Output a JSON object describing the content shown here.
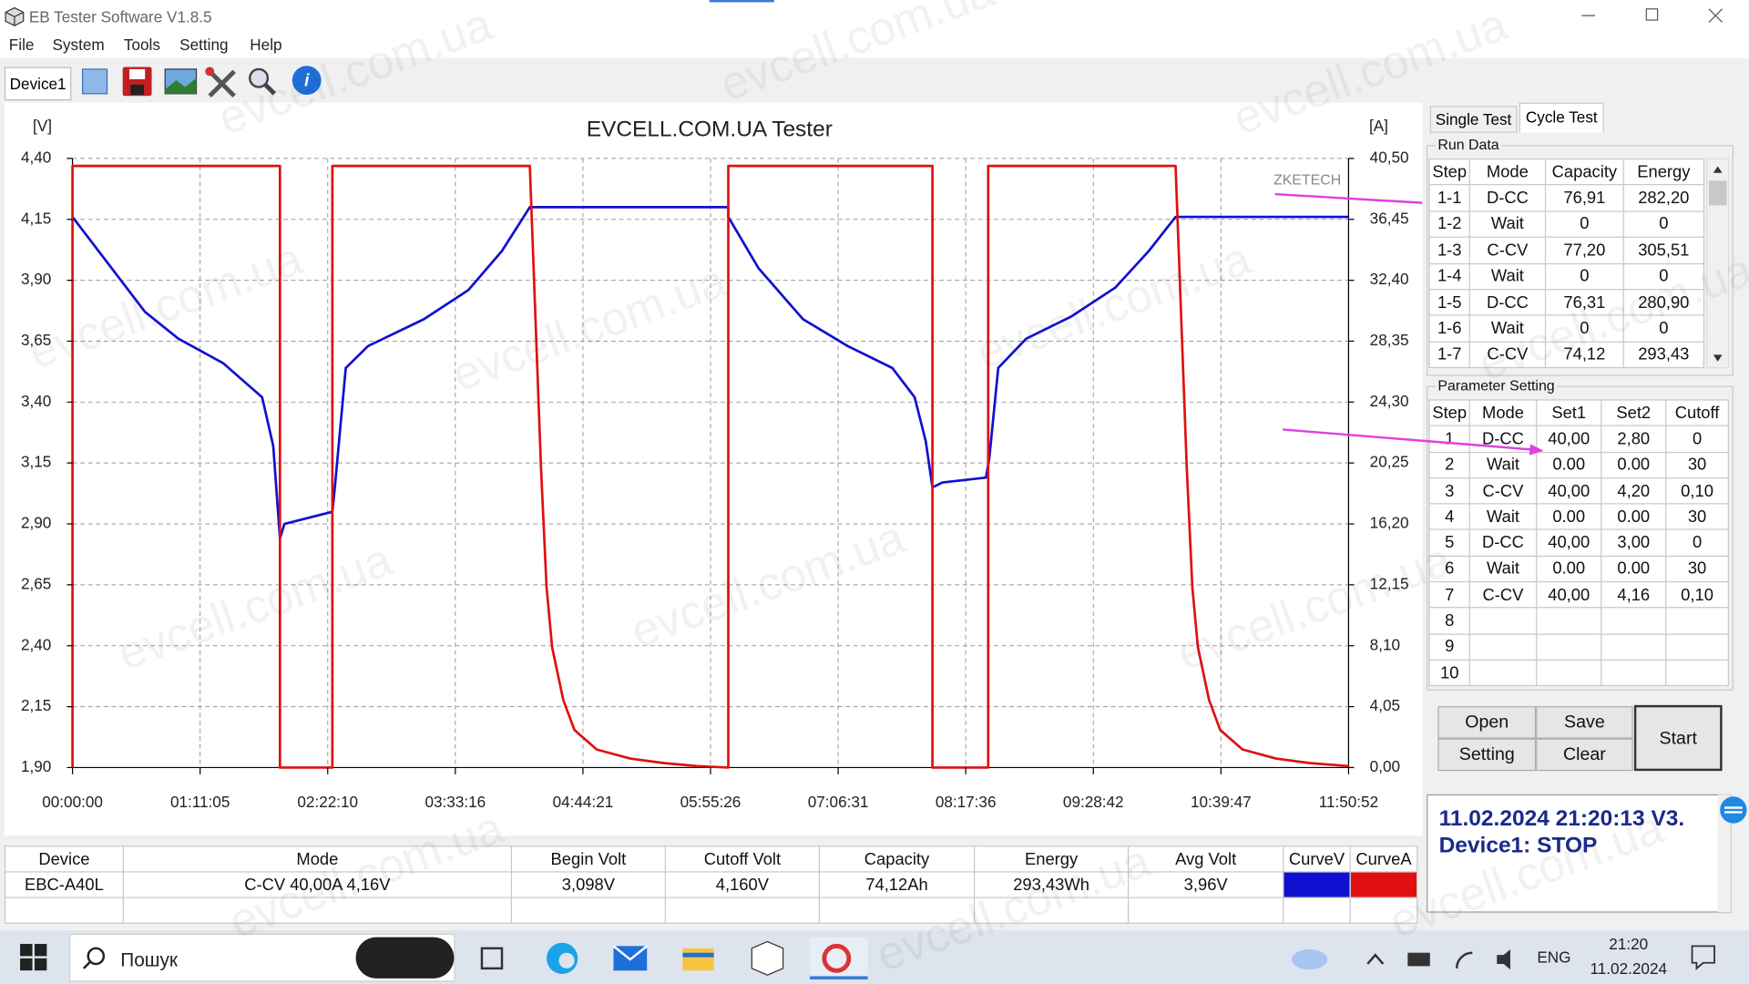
{
  "window": {
    "title": "EB Tester Software V1.8.5"
  },
  "menu": [
    "File",
    "System",
    "Tools",
    "Setting",
    "Help"
  ],
  "toolbar": {
    "device": "Device1"
  },
  "watermark": "evcell.com.ua",
  "chart_data": {
    "type": "line",
    "title": "EVCELL.COM.UA Tester",
    "y_label": "[V]",
    "y2_label": "[A]",
    "brand": "ZKETECH",
    "xlim": [
      0,
      42652
    ],
    "xticks": [
      {
        "value": 0,
        "label": "00:00:00"
      },
      {
        "value": 4265,
        "label": "01:11:05"
      },
      {
        "value": 8530,
        "label": "02:22:10"
      },
      {
        "value": 12796,
        "label": "03:33:16"
      },
      {
        "value": 17061,
        "label": "04:44:21"
      },
      {
        "value": 21326,
        "label": "05:55:26"
      },
      {
        "value": 25591,
        "label": "07:06:31"
      },
      {
        "value": 29856,
        "label": "08:17:36"
      },
      {
        "value": 34122,
        "label": "09:28:42"
      },
      {
        "value": 38387,
        "label": "10:39:47"
      },
      {
        "value": 42652,
        "label": "11:50:52"
      }
    ],
    "ylim": [
      1.9,
      4.4
    ],
    "yticks": [
      {
        "value": 4.4,
        "label": "4,40"
      },
      {
        "value": 4.15,
        "label": "4,15"
      },
      {
        "value": 3.9,
        "label": "3,90"
      },
      {
        "value": 3.65,
        "label": "3,65"
      },
      {
        "value": 3.4,
        "label": "3,40"
      },
      {
        "value": 3.15,
        "label": "3,15"
      },
      {
        "value": 2.9,
        "label": "2,90"
      },
      {
        "value": 2.65,
        "label": "2,65"
      },
      {
        "value": 2.4,
        "label": "2,40"
      },
      {
        "value": 2.15,
        "label": "2,15"
      },
      {
        "value": 1.9,
        "label": "1,90"
      }
    ],
    "y2lim": [
      0,
      40.5
    ],
    "y2ticks": [
      {
        "value": 40.5,
        "label": "40,50"
      },
      {
        "value": 36.45,
        "label": "36,45"
      },
      {
        "value": 32.4,
        "label": "32,40"
      },
      {
        "value": 28.35,
        "label": "28,35"
      },
      {
        "value": 24.3,
        "label": "24,30"
      },
      {
        "value": 20.25,
        "label": "20,25"
      },
      {
        "value": 16.2,
        "label": "16,20"
      },
      {
        "value": 12.15,
        "label": "12,15"
      },
      {
        "value": 8.1,
        "label": "8,10"
      },
      {
        "value": 4.05,
        "label": "4,05"
      },
      {
        "value": 0,
        "label": "0,00"
      }
    ],
    "grid": true,
    "series": [
      {
        "name": "CurveV",
        "color": "#1010d0",
        "axis": "y",
        "x": [
          0,
          1305,
          2423,
          3542,
          5033,
          6338,
          6710,
          6934,
          7083,
          8686,
          8761,
          9134,
          9879,
          11743,
          13234,
          14353,
          15286,
          21920,
          21920,
          22927,
          24418,
          25910,
          27401,
          28147,
          28519,
          28743,
          29078,
          30532,
          30644,
          30943,
          31874,
          33366,
          34857,
          35975,
          36870,
          42652
        ],
        "values": [
          4.16,
          3.95,
          3.77,
          3.66,
          3.56,
          3.42,
          3.22,
          2.84,
          2.9,
          2.95,
          3.04,
          3.54,
          3.63,
          3.74,
          3.86,
          4.02,
          4.2,
          4.2,
          4.16,
          3.95,
          3.74,
          3.63,
          3.54,
          3.42,
          3.24,
          3.05,
          3.07,
          3.09,
          3.17,
          3.54,
          3.66,
          3.75,
          3.87,
          4.02,
          4.16,
          4.16
        ]
      },
      {
        "name": "CurveA",
        "color": "#e01010",
        "axis": "y2",
        "x": [
          0,
          0,
          6934,
          6934,
          8686,
          8686,
          15286,
          15472,
          15658,
          15845,
          16031,
          16404,
          16777,
          17523,
          18641,
          19760,
          20878,
          21920,
          21920,
          28743,
          28743,
          30607,
          30607,
          36870,
          37056,
          37243,
          37430,
          37616,
          37989,
          38362,
          39108,
          40226,
          41345,
          42652
        ],
        "values": [
          0,
          40,
          40,
          0,
          0,
          40,
          40,
          30,
          20,
          12,
          8,
          4.5,
          2.5,
          1.2,
          0.6,
          0.3,
          0.1,
          0,
          40,
          40,
          0,
          0,
          40,
          40,
          30,
          20,
          12,
          8,
          4.5,
          2.5,
          1.2,
          0.6,
          0.3,
          0.1
        ]
      }
    ]
  },
  "tabs": [
    "Single Test",
    "Cycle Test"
  ],
  "run_data": {
    "title": "Run Data",
    "columns": [
      "Step",
      "Mode",
      "Capacity",
      "Energy"
    ],
    "rows": [
      [
        "1-1",
        "D-CC",
        "76,91",
        "282,20"
      ],
      [
        "1-2",
        "Wait",
        "0",
        "0"
      ],
      [
        "1-3",
        "C-CV",
        "77,20",
        "305,51"
      ],
      [
        "1-4",
        "Wait",
        "0",
        "0"
      ],
      [
        "1-5",
        "D-CC",
        "76,31",
        "280,90"
      ],
      [
        "1-6",
        "Wait",
        "0",
        "0"
      ],
      [
        "1-7",
        "C-CV",
        "74,12",
        "293,43"
      ]
    ]
  },
  "parameter_setting": {
    "title": "Parameter Setting",
    "columns": [
      "Step",
      "Mode",
      "Set1",
      "Set2",
      "Cutoff"
    ],
    "rows": [
      [
        "1",
        "D-CC",
        "40,00",
        "2,80",
        "0"
      ],
      [
        "2",
        "Wait",
        "0.00",
        "0.00",
        "30"
      ],
      [
        "3",
        "C-CV",
        "40,00",
        "4,20",
        "0,10"
      ],
      [
        "4",
        "Wait",
        "0.00",
        "0.00",
        "30"
      ],
      [
        "5",
        "D-CC",
        "40,00",
        "3,00",
        "0"
      ],
      [
        "6",
        "Wait",
        "0.00",
        "0.00",
        "30"
      ],
      [
        "7",
        "C-CV",
        "40,00",
        "4,16",
        "0,10"
      ],
      [
        "8"
      ],
      [
        "9"
      ],
      [
        "10"
      ]
    ]
  },
  "buttons": {
    "open": "Open",
    "setting": "Setting",
    "save": "Save",
    "clear": "Clear",
    "start": "Start"
  },
  "status": {
    "line1": "11.02.2024 21:20:13  V3.",
    "line2": "Device1: STOP"
  },
  "summary": {
    "columns": [
      "Device",
      "Mode",
      "Begin Volt",
      "Cutoff Volt",
      "Capacity",
      "Energy",
      "Avg Volt"
    ],
    "row": [
      "EBC-A40L",
      "C-CV  40,00A  4,16V",
      "3,098V",
      "4,160V",
      "74,12Ah",
      "293,43Wh",
      "3,96V"
    ]
  },
  "taskbar": {
    "search": "Пошук",
    "language": "ENG",
    "time": "21:20",
    "date": "11.02.2024"
  }
}
